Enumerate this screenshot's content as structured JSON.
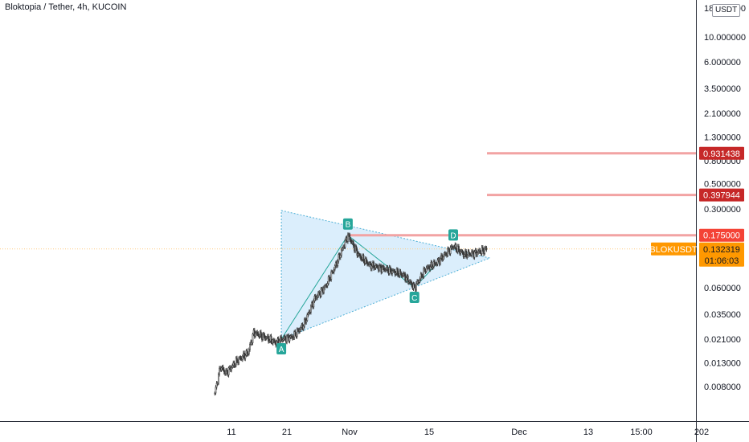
{
  "header": {
    "title": "Bloktopia / Tether, 4h, KUCOIN",
    "currency": "USDT"
  },
  "colors": {
    "candle": "#3a3a3a",
    "pattern_fill": "#cfe8fb",
    "pattern_edge": "#4fb0d6",
    "pattern_inner_line": "#26a69a",
    "pivot_label_bg": "#26a69a",
    "resistance_line": "#f2a3a3",
    "resistance_label_bg": "#c62828",
    "resistance_label_bg_top": "#f44336",
    "last_price_bg": "#ff9800",
    "last_price_line": "#ffcc80",
    "axis_text": "#131722"
  },
  "chart_data": {
    "type": "candlestick",
    "symbol": "BLOKUSDT",
    "interval": "4h",
    "exchange": "KUCOIN",
    "y_scale": "log",
    "ylim": [
      0.0058,
      19.5
    ],
    "y_ticks": [
      "18.000000",
      "10.000000",
      "6.000000",
      "3.500000",
      "2.100000",
      "1.300000",
      "0.800000",
      "0.500000",
      "0.300000",
      "0.060000",
      "0.035000",
      "0.021000",
      "0.013000",
      "0.008000"
    ],
    "x_ticks": [
      "11",
      "21",
      "Nov",
      "15",
      "Dec",
      "13",
      "15:00",
      "202"
    ],
    "price_path": [
      {
        "date": "2021-10-08",
        "price": 0.007
      },
      {
        "date": "2021-10-09",
        "price": 0.012
      },
      {
        "date": "2021-10-10",
        "price": 0.0105
      },
      {
        "date": "2021-10-12",
        "price": 0.0135
      },
      {
        "date": "2021-10-14",
        "price": 0.016
      },
      {
        "date": "2021-10-15",
        "price": 0.024
      },
      {
        "date": "2021-10-17",
        "price": 0.022
      },
      {
        "date": "2021-10-19",
        "price": 0.0195
      },
      {
        "date": "2021-10-20",
        "price": 0.021
      },
      {
        "date": "2021-10-22",
        "price": 0.022
      },
      {
        "date": "2021-10-24",
        "price": 0.028
      },
      {
        "date": "2021-10-26",
        "price": 0.048
      },
      {
        "date": "2021-10-28",
        "price": 0.062
      },
      {
        "date": "2021-10-30",
        "price": 0.1
      },
      {
        "date": "2021-11-01",
        "price": 0.175
      },
      {
        "date": "2021-11-03",
        "price": 0.115
      },
      {
        "date": "2021-11-05",
        "price": 0.095
      },
      {
        "date": "2021-11-08",
        "price": 0.087
      },
      {
        "date": "2021-11-11",
        "price": 0.078
      },
      {
        "date": "2021-11-13",
        "price": 0.06
      },
      {
        "date": "2021-11-15",
        "price": 0.088
      },
      {
        "date": "2021-11-17",
        "price": 0.1
      },
      {
        "date": "2021-11-20",
        "price": 0.14
      },
      {
        "date": "2021-11-22",
        "price": 0.118
      },
      {
        "date": "2021-11-24",
        "price": 0.122
      },
      {
        "date": "2021-11-26",
        "price": 0.1323
      }
    ],
    "pattern": {
      "name": "ABCD",
      "points": [
        {
          "label": "A",
          "date": "2021-10-20",
          "price": 0.021
        },
        {
          "label": "B",
          "date": "2021-11-01",
          "price": 0.175
        },
        {
          "label": "C",
          "date": "2021-11-13",
          "price": 0.06
        },
        {
          "label": "D",
          "date": "2021-11-20",
          "price": 0.14
        }
      ],
      "triangle_top": {
        "date": "2021-10-20",
        "price": 0.29
      },
      "triangle_right": {
        "date": "2021-11-26",
        "price": 0.11
      }
    },
    "horizontal_levels": [
      {
        "price": 0.931438,
        "label": "0.931438"
      },
      {
        "price": 0.397944,
        "label": "0.397944"
      },
      {
        "price": 0.175,
        "label": "0.175000"
      }
    ],
    "last_price": {
      "symbol": "BLOKUSDT",
      "value": "0.132319",
      "countdown": "01:06:03",
      "price": 0.132319
    }
  }
}
